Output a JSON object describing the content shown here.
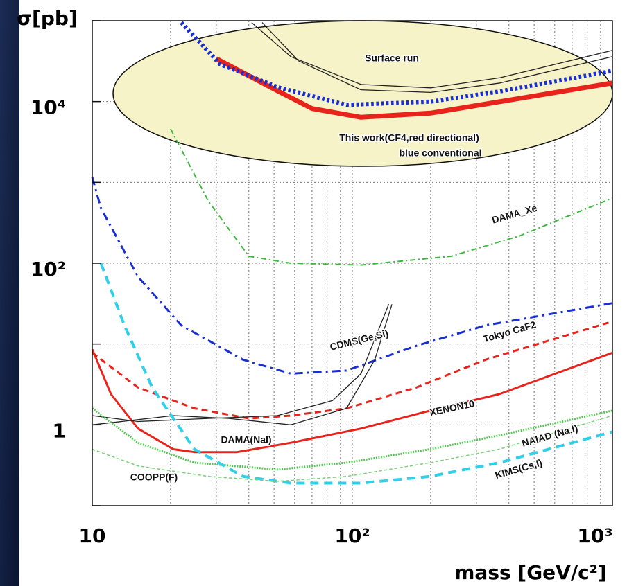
{
  "chart_data": {
    "type": "line",
    "log_x": true,
    "log_y": true,
    "grid": true,
    "ylabel": "σ[pb]",
    "xlabel": "mass [GeV/c²]",
    "xlim": [
      10,
      1000
    ],
    "ylim": [
      0.1,
      100000
    ],
    "xticks": [
      {
        "value": 10,
        "label": "10"
      },
      {
        "value": 20,
        "label": null
      },
      {
        "value": 30,
        "label": null
      },
      {
        "value": 40,
        "label": null
      },
      {
        "value": 50,
        "label": null
      },
      {
        "value": 60,
        "label": null
      },
      {
        "value": 70,
        "label": null
      },
      {
        "value": 80,
        "label": null
      },
      {
        "value": 90,
        "label": null
      },
      {
        "value": 100,
        "label": "10²"
      },
      {
        "value": 200,
        "label": null
      },
      {
        "value": 300,
        "label": null
      },
      {
        "value": 400,
        "label": null
      },
      {
        "value": 500,
        "label": null
      },
      {
        "value": 600,
        "label": null
      },
      {
        "value": 700,
        "label": null
      },
      {
        "value": 800,
        "label": null
      },
      {
        "value": 900,
        "label": null
      },
      {
        "value": 1000,
        "label": "10³"
      }
    ],
    "yticks": [
      {
        "value": 0.1,
        "label": null
      },
      {
        "value": 1,
        "label": "1"
      },
      {
        "value": 10,
        "label": null
      },
      {
        "value": 100,
        "label": "10²"
      },
      {
        "value": 1000,
        "label": null
      },
      {
        "value": 10000,
        "label": "10⁴"
      },
      {
        "value": 100000,
        "label": null
      }
    ],
    "series": [
      {
        "name": "This work(CF4,red directional)",
        "color": "#e8231c",
        "style": "solid",
        "width": 7,
        "curves": [
          {
            "x": [
              30,
              52,
              70,
              108,
              200,
              370,
              1000
            ],
            "values": [
              34000,
              13400,
              8200,
              6400,
              7200,
              10000,
              17000
            ]
          }
        ]
      },
      {
        "name": "blue conventional",
        "color": "#1a2fd0",
        "style": "dotted",
        "width": 6,
        "curves": [
          {
            "x": [
              22,
              31,
              52,
              95,
              200,
              370,
              1000
            ],
            "values": [
              95000,
              29000,
              15000,
              9100,
              10000,
              13400,
              24000
            ]
          }
        ]
      },
      {
        "name": "Surface run",
        "color": "#222222",
        "style": "solid",
        "width": 1.3,
        "curves": [
          {
            "x": [
              41,
              58,
              108,
              200,
              370,
              1000
            ],
            "values": [
              95000,
              36000,
              16300,
              14800,
              19800,
              43000
            ]
          },
          {
            "x": [
              45,
              62,
              108,
              200,
              370,
              1000
            ],
            "values": [
              95000,
              32000,
              14000,
              13000,
              17000,
              36000
            ]
          }
        ]
      },
      {
        "name": "DAMA_Xe",
        "color": "#3cb83c",
        "style": "dashdot",
        "width": 2,
        "curves": [
          {
            "x": [
              20,
              28,
              40,
              58,
              108,
              240,
              440,
              1000
            ],
            "values": [
              4600,
              580,
              122,
              100,
              95,
              122,
              218,
              640
            ]
          }
        ]
      },
      {
        "name": "CDMS(Ge,Si)",
        "color": "#1a2fd0",
        "style": "dashdot",
        "width": 3,
        "curves": [
          {
            "x": [
              10,
              10.8,
              15,
              22,
              38,
              58,
              95,
              176,
              325,
              1000
            ],
            "values": [
              1160,
              480,
              68,
              17,
              6.4,
              4.3,
              4.7,
              9.5,
              17,
              32
            ]
          }
        ]
      },
      {
        "name": "Tokyo CaF2",
        "color": "#e8231c",
        "style": "dashed",
        "width": 3,
        "curves": [
          {
            "x": [
              10,
              15,
              24.7,
              40,
              58,
              95,
              176,
              325,
              1000
            ],
            "values": [
              7.8,
              2.9,
              1.6,
              1.2,
              1.3,
              1.6,
              2.9,
              6.4,
              19
            ]
          }
        ]
      },
      {
        "name": "XENON10",
        "color": "#e8231c",
        "style": "solid",
        "width": 3,
        "curves": [
          {
            "x": [
              10,
              11.8,
              15,
              20.5,
              24.7,
              36,
              58,
              108,
              199,
              367,
              1000
            ],
            "values": [
              8.6,
              2.4,
              0.9,
              0.5,
              0.46,
              0.46,
              0.6,
              0.9,
              1.5,
              2.4,
              7.8
            ]
          }
        ]
      },
      {
        "name": "DAMA(NaI)",
        "color": "#222222",
        "style": "solid",
        "width": 1.3,
        "curves": [
          {
            "x": [
              10,
              15,
              28,
              51.5,
              84,
              108,
              138
            ],
            "values": [
              1.3,
              1.1,
              1.2,
              1.3,
              2.0,
              4.3,
              31
            ]
          },
          {
            "x": [
              10,
              20.5,
              33.5,
              58,
              95,
              122,
              142
            ],
            "values": [
              1,
              1.3,
              1.2,
              1.0,
              1.6,
              6.4,
              31
            ]
          }
        ]
      },
      {
        "name": "NAIAD (Na,I)",
        "color": "#4cc84c",
        "style": "dotted",
        "width": 3,
        "curves": [
          {
            "x": [
              10,
              15,
              24.7,
              51.5,
              95,
              199,
              367,
              1000
            ],
            "values": [
              1.6,
              0.6,
              0.34,
              0.28,
              0.34,
              0.5,
              0.74,
              1.5
            ]
          }
        ]
      },
      {
        "name": "KIMS(Cs,I)",
        "color": "#2fd0e8",
        "style": "dashed",
        "width": 4,
        "curves": [
          {
            "x": [
              10.8,
              13.3,
              17,
              24.7,
              38,
              58,
              108,
              199,
              367,
              1000
            ],
            "values": [
              100,
              17,
              2.9,
              0.5,
              0.23,
              0.19,
              0.19,
              0.23,
              0.34,
              0.82
            ]
          }
        ]
      },
      {
        "name": "COOPP(F)",
        "color": "#7ad07a",
        "style": "dashed",
        "width": 1.5,
        "curves": [
          {
            "x": [
              10,
              15,
              28,
              51.5,
              95,
              199,
              367,
              1000
            ],
            "values": [
              0.5,
              0.31,
              0.23,
              0.2,
              0.23,
              0.34,
              0.5,
              1.3
            ]
          }
        ]
      }
    ]
  }
}
